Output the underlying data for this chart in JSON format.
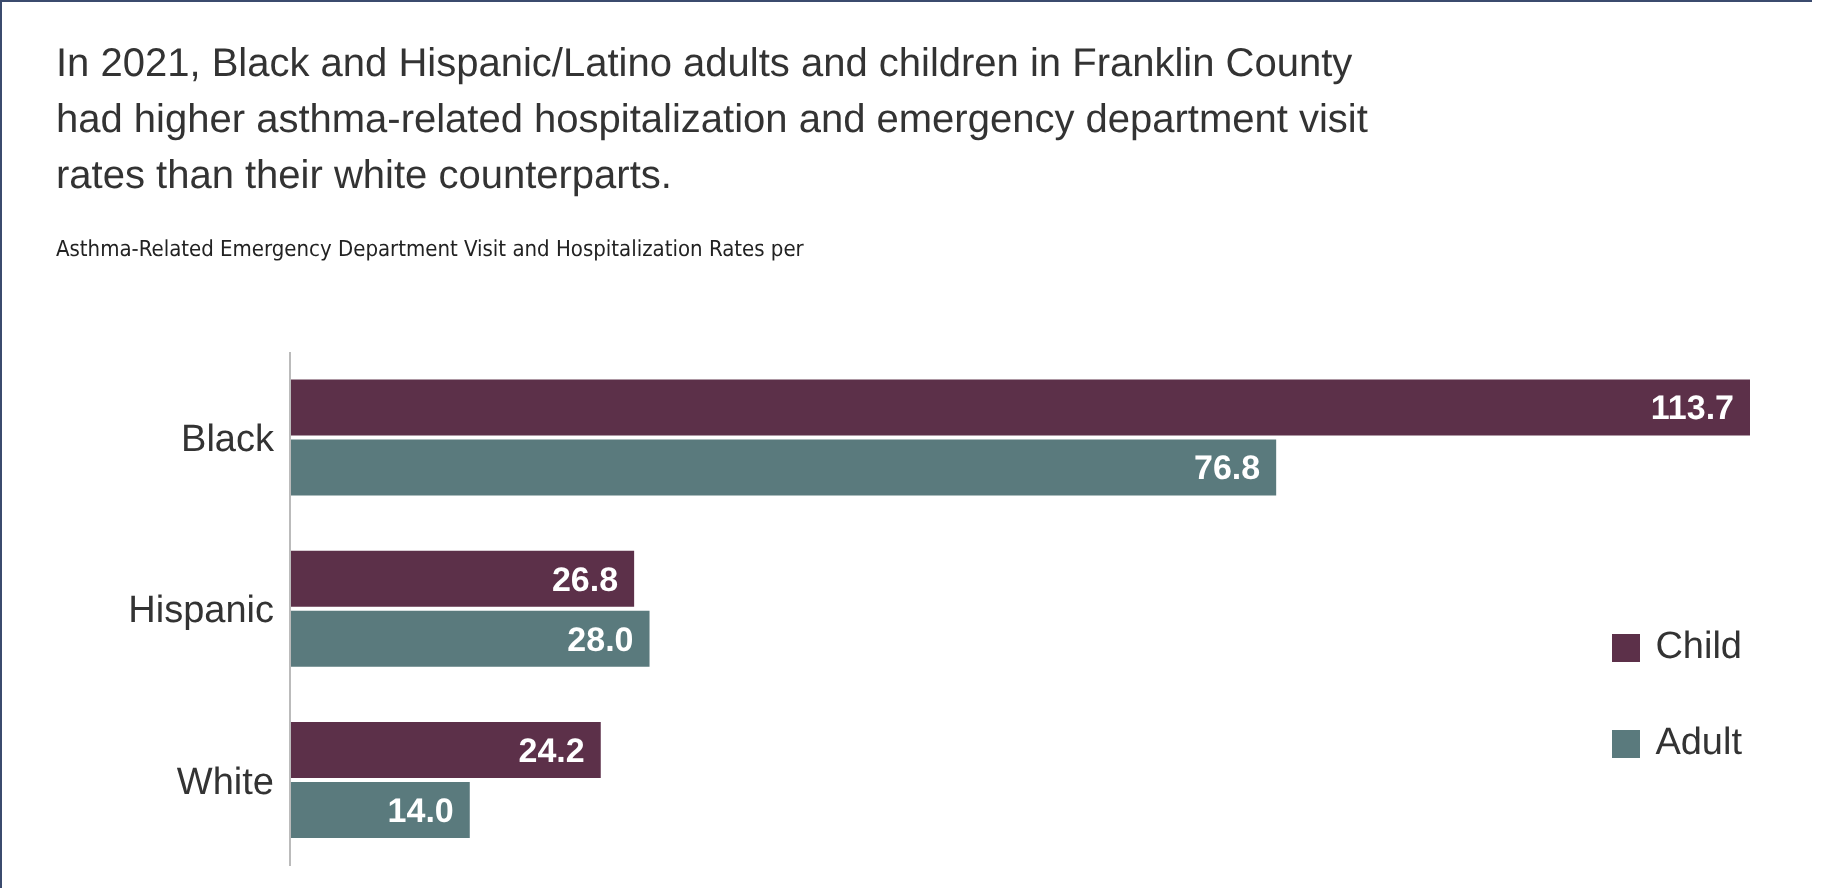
{
  "chart_data": {
    "type": "bar",
    "orientation": "horizontal",
    "title": "In 2021, Black and Hispanic/Latino adults and children in Franklin County had higher asthma-related hospitalization and emergency department visit rates than their white counterparts.",
    "subtitle": "Asthma-Related Emergency Department Visit and Hospitalization Rates per",
    "categories": [
      "Black",
      "Hispanic",
      "White"
    ],
    "series": [
      {
        "name": "Child",
        "color": "#5c3049",
        "values": [
          113.7,
          26.8,
          24.2
        ],
        "value_labels": [
          "113.7",
          "26.8",
          "24.2"
        ]
      },
      {
        "name": "Adult",
        "color": "#5a7a7d",
        "values": [
          76.8,
          28.0,
          14.0
        ],
        "value_labels": [
          "76.8",
          "28.0",
          "14.0"
        ]
      }
    ],
    "legend": "right",
    "grid": false
  }
}
